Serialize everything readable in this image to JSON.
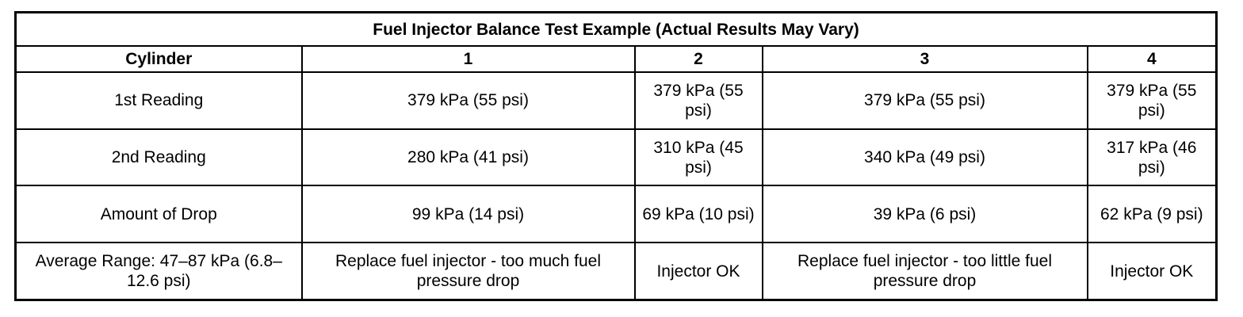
{
  "table": {
    "title": "Fuel Injector Balance Test Example (Actual Results May Vary)",
    "headers": [
      "Cylinder",
      "1",
      "2",
      "3",
      "4"
    ],
    "rows": [
      [
        "1st Reading",
        "379 kPa (55 psi)",
        "379 kPa (55 psi)",
        "379 kPa (55 psi)",
        "379 kPa (55 psi)"
      ],
      [
        "2nd Reading",
        "280 kPa (41 psi)",
        "310 kPa (45 psi)",
        "340 kPa (49 psi)",
        "317 kPa (46 psi)"
      ],
      [
        "Amount of Drop",
        "99 kPa (14 psi)",
        "69 kPa (10 psi)",
        "39 kPa (6 psi)",
        "62 kPa (9 psi)"
      ],
      [
        "Average Range: 47–87 kPa (6.8–12.6 psi)",
        "Replace fuel injector - too much fuel pressure drop",
        "Injector OK",
        "Replace fuel injector - too little fuel pressure drop",
        "Injector OK"
      ]
    ]
  }
}
